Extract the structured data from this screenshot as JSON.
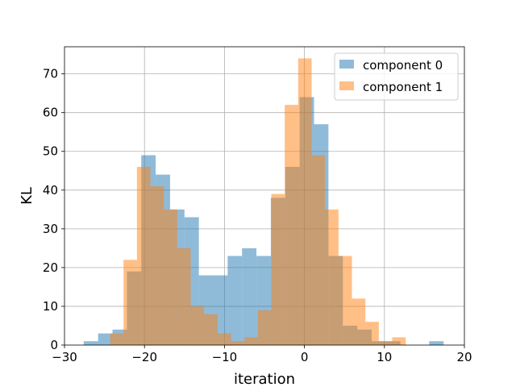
{
  "chart_data": {
    "type": "bar",
    "histogram": true,
    "xlabel": "iteration",
    "ylabel": "KL",
    "xlim": [
      -30,
      20
    ],
    "ylim": [
      0,
      77
    ],
    "xticks": [
      -30,
      -20,
      -10,
      0,
      10,
      20
    ],
    "xtick_labels": [
      "−30",
      "−20",
      "−10",
      "0",
      "10",
      "20"
    ],
    "yticks": [
      0,
      10,
      20,
      30,
      40,
      50,
      60,
      70
    ],
    "ytick_labels": [
      "0",
      "10",
      "20",
      "30",
      "40",
      "50",
      "60",
      "70"
    ],
    "grid": true,
    "legend_position": "top-right",
    "series": [
      {
        "name": "component 0",
        "color": "#1f77b4",
        "alpha": 0.5,
        "bin_edges": [
          -27.6,
          -25.8,
          -24.0,
          -22.2,
          -20.4,
          -18.6,
          -16.8,
          -15.0,
          -13.2,
          -11.4,
          -9.6,
          -7.8,
          -6.0,
          -4.2,
          -2.4,
          -0.6,
          1.2,
          3.0,
          4.8,
          6.6,
          8.4,
          10.2,
          12.0,
          13.8,
          15.6,
          17.4
        ],
        "counts": [
          1,
          3,
          4,
          19,
          49,
          44,
          35,
          33,
          18,
          18,
          23,
          25,
          23,
          38,
          46,
          64,
          57,
          23,
          5,
          4,
          1,
          1,
          0,
          0,
          1
        ]
      },
      {
        "name": "component 1",
        "color": "#ff7f0e",
        "alpha": 0.5,
        "bin_edges": [
          -24.3,
          -22.62,
          -20.94,
          -19.26,
          -17.58,
          -15.9,
          -14.22,
          -12.54,
          -10.86,
          -9.18,
          -7.5,
          -5.82,
          -4.14,
          -2.46,
          -0.78,
          0.9,
          2.58,
          4.26,
          5.94,
          7.62,
          9.3,
          10.98,
          12.66
        ],
        "counts": [
          3,
          22,
          46,
          41,
          35,
          25,
          10,
          8,
          3,
          1,
          2,
          9,
          39,
          62,
          74,
          49,
          35,
          23,
          12,
          6,
          1,
          2
        ]
      }
    ]
  }
}
